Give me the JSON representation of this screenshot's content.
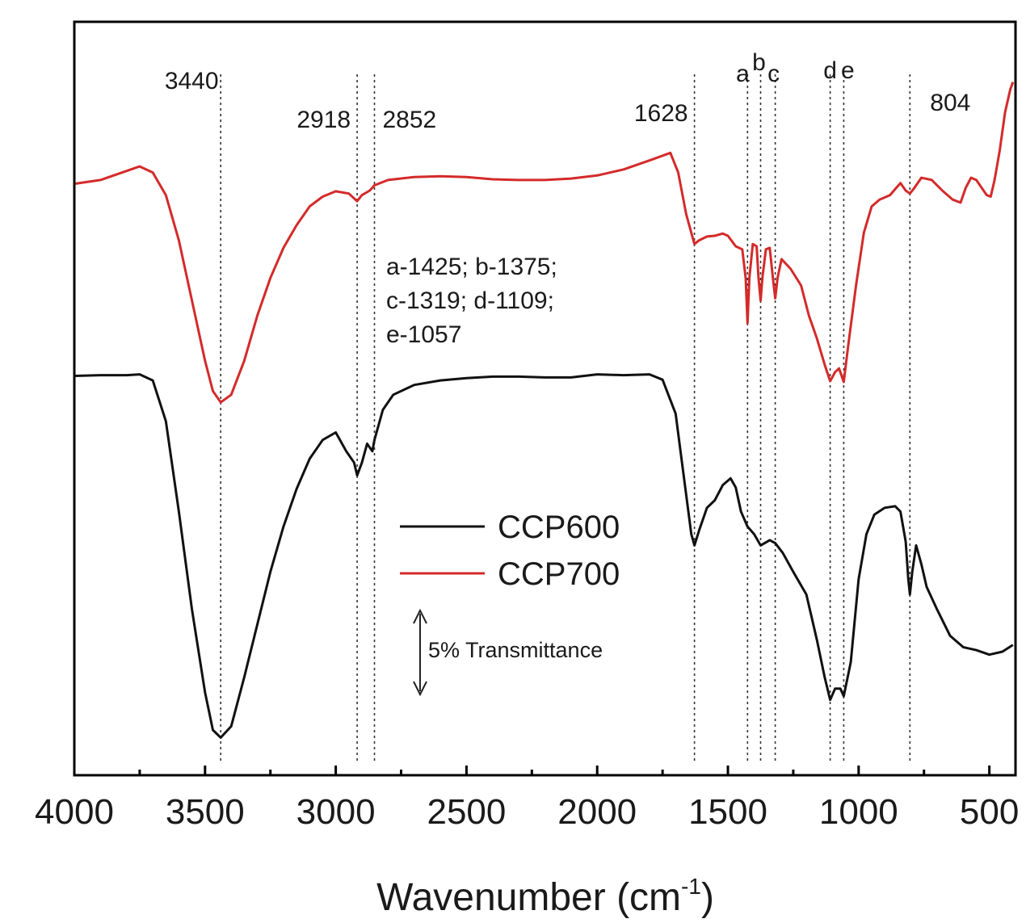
{
  "chart_data": {
    "type": "line",
    "title": "",
    "xlabel": "Wavenumber (cm",
    "xlabel_sup": "-1",
    "xlabel_close": ")",
    "ylabel": "",
    "xlim": [
      4000,
      400
    ],
    "x_reversed": true,
    "ylim": [
      0,
      100
    ],
    "grid": false,
    "legend": {
      "placement": "center"
    },
    "x_ticks": [
      4000,
      3500,
      3000,
      2500,
      2000,
      1500,
      1000,
      500
    ],
    "x_tick_labels": [
      "4000",
      "3500",
      "3000",
      "2500",
      "2000",
      "1500",
      "1000",
      "500"
    ],
    "peak_lines": [
      {
        "x": 3440,
        "label": "3440"
      },
      {
        "x": 2918,
        "label": "2918"
      },
      {
        "x": 2852,
        "label": "2852"
      },
      {
        "x": 1628,
        "label": "1628"
      },
      {
        "x": 1425,
        "label": "a"
      },
      {
        "x": 1375,
        "label": "b"
      },
      {
        "x": 1319,
        "label": "c"
      },
      {
        "x": 1109,
        "label": "d"
      },
      {
        "x": 1057,
        "label": "e"
      },
      {
        "x": 804,
        "label": "804"
      }
    ],
    "annotation_lines": [
      "a-1425; b-1375;",
      "c-1319; d-1109;",
      "e-1057"
    ],
    "scale_bar_label": "5% Transmittance",
    "series": [
      {
        "name": "CCP600",
        "color": "#111111",
        "points": [
          [
            4000,
            53.0
          ],
          [
            3900,
            53.1
          ],
          [
            3800,
            53.1
          ],
          [
            3750,
            53.2
          ],
          [
            3700,
            52.4
          ],
          [
            3650,
            47.0
          ],
          [
            3600,
            35.0
          ],
          [
            3550,
            22.0
          ],
          [
            3500,
            11.0
          ],
          [
            3470,
            6.0
          ],
          [
            3440,
            5.0
          ],
          [
            3400,
            6.5
          ],
          [
            3350,
            13.0
          ],
          [
            3300,
            20.0
          ],
          [
            3250,
            27.0
          ],
          [
            3200,
            33.0
          ],
          [
            3150,
            38.0
          ],
          [
            3100,
            42.0
          ],
          [
            3050,
            44.5
          ],
          [
            3000,
            45.5
          ],
          [
            2960,
            43.0
          ],
          [
            2930,
            41.5
          ],
          [
            2918,
            39.8
          ],
          [
            2900,
            41.5
          ],
          [
            2880,
            44.0
          ],
          [
            2860,
            43.0
          ],
          [
            2852,
            44.5
          ],
          [
            2820,
            48.5
          ],
          [
            2780,
            50.5
          ],
          [
            2700,
            51.8
          ],
          [
            2600,
            52.4
          ],
          [
            2500,
            52.7
          ],
          [
            2400,
            52.9
          ],
          [
            2300,
            52.9
          ],
          [
            2200,
            52.8
          ],
          [
            2100,
            52.8
          ],
          [
            2000,
            53.2
          ],
          [
            1900,
            53.1
          ],
          [
            1800,
            53.2
          ],
          [
            1750,
            52.5
          ],
          [
            1700,
            48.0
          ],
          [
            1670,
            40.0
          ],
          [
            1640,
            32.0
          ],
          [
            1628,
            30.5
          ],
          [
            1610,
            32.5
          ],
          [
            1580,
            35.5
          ],
          [
            1550,
            36.5
          ],
          [
            1520,
            38.5
          ],
          [
            1490,
            39.4
          ],
          [
            1470,
            38.2
          ],
          [
            1450,
            35.0
          ],
          [
            1425,
            33.0
          ],
          [
            1400,
            32.0
          ],
          [
            1375,
            30.5
          ],
          [
            1340,
            31.2
          ],
          [
            1319,
            30.8
          ],
          [
            1290,
            29.5
          ],
          [
            1250,
            27.0
          ],
          [
            1200,
            24.0
          ],
          [
            1160,
            18.0
          ],
          [
            1130,
            13.0
          ],
          [
            1109,
            10.0
          ],
          [
            1090,
            11.5
          ],
          [
            1070,
            11.5
          ],
          [
            1057,
            10.5
          ],
          [
            1030,
            15.0
          ],
          [
            1000,
            26.0
          ],
          [
            970,
            32.0
          ],
          [
            940,
            34.6
          ],
          [
            900,
            35.5
          ],
          [
            860,
            35.7
          ],
          [
            840,
            35.0
          ],
          [
            820,
            31.0
          ],
          [
            810,
            26.0
          ],
          [
            804,
            24.0
          ],
          [
            795,
            27.0
          ],
          [
            780,
            30.5
          ],
          [
            760,
            28.0
          ],
          [
            740,
            25.0
          ],
          [
            700,
            22.0
          ],
          [
            650,
            18.5
          ],
          [
            600,
            17.0
          ],
          [
            550,
            16.6
          ],
          [
            500,
            16.0
          ],
          [
            450,
            16.4
          ],
          [
            410,
            17.3
          ]
        ]
      },
      {
        "name": "CCP700",
        "color": "#d42a2a",
        "points": [
          [
            4000,
            78.5
          ],
          [
            3900,
            79.0
          ],
          [
            3800,
            80.2
          ],
          [
            3750,
            80.8
          ],
          [
            3700,
            80.0
          ],
          [
            3650,
            77.0
          ],
          [
            3600,
            71.0
          ],
          [
            3550,
            63.0
          ],
          [
            3500,
            55.0
          ],
          [
            3470,
            51.0
          ],
          [
            3440,
            49.5
          ],
          [
            3400,
            50.5
          ],
          [
            3350,
            55.0
          ],
          [
            3300,
            61.0
          ],
          [
            3250,
            66.0
          ],
          [
            3200,
            70.0
          ],
          [
            3150,
            73.0
          ],
          [
            3100,
            75.5
          ],
          [
            3050,
            76.8
          ],
          [
            3000,
            77.5
          ],
          [
            2950,
            77.2
          ],
          [
            2918,
            76.2
          ],
          [
            2900,
            77.0
          ],
          [
            2870,
            77.6
          ],
          [
            2852,
            78.3
          ],
          [
            2800,
            79.0
          ],
          [
            2700,
            79.4
          ],
          [
            2600,
            79.5
          ],
          [
            2500,
            79.4
          ],
          [
            2400,
            79.1
          ],
          [
            2300,
            79.0
          ],
          [
            2200,
            79.0
          ],
          [
            2100,
            79.2
          ],
          [
            2000,
            79.6
          ],
          [
            1900,
            80.4
          ],
          [
            1800,
            81.6
          ],
          [
            1720,
            82.6
          ],
          [
            1690,
            80.0
          ],
          [
            1660,
            74.5
          ],
          [
            1640,
            72.0
          ],
          [
            1628,
            70.5
          ],
          [
            1610,
            71.0
          ],
          [
            1580,
            71.5
          ],
          [
            1550,
            71.6
          ],
          [
            1520,
            71.9
          ],
          [
            1500,
            71.6
          ],
          [
            1470,
            70.2
          ],
          [
            1445,
            69.8
          ],
          [
            1432,
            66.0
          ],
          [
            1425,
            60.0
          ],
          [
            1418,
            66.0
          ],
          [
            1405,
            70.5
          ],
          [
            1390,
            70.2
          ],
          [
            1383,
            66.0
          ],
          [
            1375,
            63.0
          ],
          [
            1368,
            66.0
          ],
          [
            1355,
            69.8
          ],
          [
            1340,
            70.0
          ],
          [
            1328,
            66.0
          ],
          [
            1319,
            63.3
          ],
          [
            1310,
            66.0
          ],
          [
            1295,
            68.5
          ],
          [
            1260,
            67.2
          ],
          [
            1220,
            65.0
          ],
          [
            1190,
            61.0
          ],
          [
            1160,
            58.0
          ],
          [
            1130,
            54.5
          ],
          [
            1109,
            52.3
          ],
          [
            1090,
            53.5
          ],
          [
            1075,
            54.0
          ],
          [
            1057,
            52.2
          ],
          [
            1040,
            57.0
          ],
          [
            1010,
            65.0
          ],
          [
            980,
            72.0
          ],
          [
            950,
            75.5
          ],
          [
            920,
            76.4
          ],
          [
            880,
            77.0
          ],
          [
            860,
            77.8
          ],
          [
            840,
            78.6
          ],
          [
            820,
            77.6
          ],
          [
            804,
            77.2
          ],
          [
            790,
            77.8
          ],
          [
            760,
            79.3
          ],
          [
            720,
            79.0
          ],
          [
            680,
            77.6
          ],
          [
            640,
            76.4
          ],
          [
            610,
            76.0
          ],
          [
            590,
            78.0
          ],
          [
            570,
            79.3
          ],
          [
            550,
            79.0
          ],
          [
            530,
            78.0
          ],
          [
            510,
            77.0
          ],
          [
            495,
            76.8
          ],
          [
            480,
            79.0
          ],
          [
            460,
            83.0
          ],
          [
            440,
            88.0
          ],
          [
            420,
            91.0
          ],
          [
            410,
            92.0
          ]
        ]
      }
    ]
  }
}
